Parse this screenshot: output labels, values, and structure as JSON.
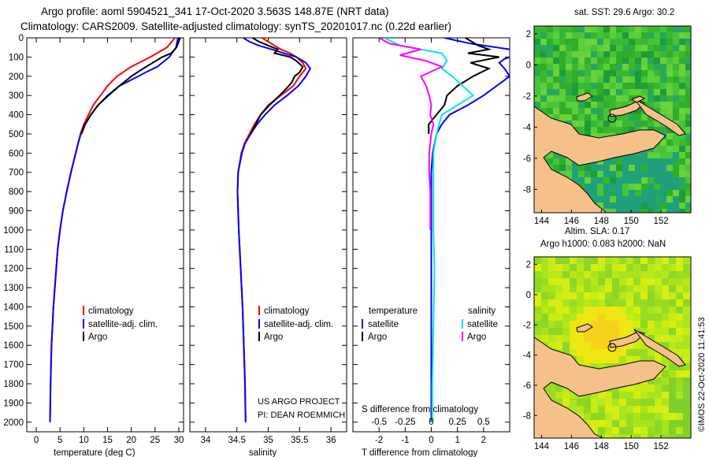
{
  "title": {
    "line1": "Argo profile: aoml 5904521_341 17-Oct-2020 3.563S 148.87E (NRT data)",
    "line2": "Climatology: CARS2009. Satellite-adjusted climatology: synTS_20201017.nc (0.22d earlier)"
  },
  "depth_ticks": [
    "0",
    "100",
    "200",
    "300",
    "400",
    "500",
    "600",
    "700",
    "800",
    "900",
    "1000",
    "1100",
    "1200",
    "1300",
    "1400",
    "1500",
    "1600",
    "1700",
    "1800",
    "1900",
    "2000"
  ],
  "colors": {
    "climatology": "#ff0000",
    "satellite": "#0000ff",
    "argo": "#000000",
    "sal_satellite": "#00e5e5",
    "sal_argo": "#ff00ff",
    "land": "#f5c08a",
    "ocean_deep": "#0a4fd0"
  },
  "chart_data": [
    {
      "type": "line",
      "panel": "temperature",
      "xlabel": "temperature (deg C)",
      "ylabel": "depth",
      "xlim": [
        -2,
        31
      ],
      "ylim": [
        2050,
        0
      ],
      "xticks": [
        0,
        5,
        10,
        15,
        20,
        25,
        30
      ],
      "xtick_labels": [
        "0",
        "5",
        "10",
        "15",
        "20",
        "25",
        "30"
      ],
      "legend": [
        "climatology",
        "satellite-adj. clim.",
        "Argo"
      ],
      "series": [
        {
          "name": "climatology",
          "depth": [
            0,
            50,
            100,
            150,
            200,
            250,
            300,
            350,
            400,
            450,
            500,
            550,
            600,
            700,
            800,
            900,
            1000,
            1100,
            1200,
            1400,
            1600,
            1800,
            2000
          ],
          "values": [
            29.2,
            27.5,
            24,
            20,
            17,
            15,
            13.5,
            12,
            11,
            10,
            9.3,
            8.8,
            8.3,
            7.3,
            6.4,
            5.6,
            5.0,
            4.5,
            4.2,
            3.6,
            3.2,
            3.0,
            2.9
          ]
        },
        {
          "name": "satellite-adj. clim.",
          "depth": [
            0,
            50,
            100,
            150,
            180,
            200,
            250,
            300,
            350,
            400,
            450,
            500,
            550,
            600,
            700,
            800,
            900,
            1000,
            1100,
            1200,
            1400,
            1600,
            1800,
            2000
          ],
          "values": [
            29.8,
            29.4,
            28,
            25.5,
            23,
            21.5,
            17.5,
            15,
            13,
            11.5,
            10.2,
            9.4,
            8.8,
            8.3,
            7.3,
            6.4,
            5.6,
            5.0,
            4.5,
            4.2,
            3.6,
            3.2,
            3.0,
            2.9
          ]
        },
        {
          "name": "Argo",
          "depth": [
            0,
            50,
            80,
            100,
            130,
            160,
            200,
            250,
            300,
            350,
            400,
            450,
            500
          ],
          "values": [
            30.3,
            29.5,
            28.4,
            26.5,
            24.5,
            22.5,
            20,
            17.5,
            15.2,
            13,
            11.5,
            10.3,
            9.5
          ]
        }
      ]
    },
    {
      "type": "line",
      "panel": "salinity",
      "xlabel": "salinity",
      "xlim": [
        33.75,
        36.25
      ],
      "ylim": [
        2050,
        0
      ],
      "xticks": [
        34,
        34.5,
        35,
        35.5,
        36
      ],
      "xtick_labels": [
        "34",
        "34.5",
        "35",
        "35.5",
        "36"
      ],
      "legend": [
        "climatology",
        "satellite-adj. clim.",
        "Argo"
      ],
      "annotation": [
        "US ARGO PROJECT",
        "PI: DEAN ROEMMICH"
      ],
      "series": [
        {
          "name": "climatology",
          "depth": [
            0,
            20,
            40,
            60,
            80,
            100,
            130,
            160,
            200,
            250,
            300,
            350,
            400,
            450,
            500,
            550,
            600,
            700,
            800,
            900,
            1000,
            1200,
            1400,
            1600,
            1800,
            2000
          ],
          "values": [
            34.9,
            35.0,
            35.1,
            35.2,
            35.35,
            35.45,
            35.55,
            35.6,
            35.5,
            35.4,
            35.2,
            35.0,
            34.88,
            34.78,
            34.7,
            34.62,
            34.57,
            34.52,
            34.51,
            34.52,
            34.53,
            34.56,
            34.59,
            34.61,
            34.63,
            34.64
          ]
        },
        {
          "name": "satellite-adj. clim.",
          "depth": [
            0,
            20,
            40,
            60,
            80,
            100,
            130,
            160,
            200,
            250,
            300,
            350,
            400,
            450,
            500,
            550,
            600,
            700,
            800,
            900,
            1000,
            1200,
            1400,
            1600,
            1800,
            2000
          ],
          "values": [
            34.6,
            34.7,
            34.85,
            35.05,
            35.25,
            35.45,
            35.6,
            35.67,
            35.6,
            35.48,
            35.3,
            35.1,
            34.95,
            34.82,
            34.72,
            34.63,
            34.58,
            34.52,
            34.51,
            34.52,
            34.53,
            34.56,
            34.59,
            34.61,
            34.63,
            34.64
          ]
        },
        {
          "name": "Argo",
          "depth": [
            0,
            20,
            40,
            60,
            80,
            100,
            120,
            150,
            180,
            200,
            230,
            260,
            300,
            350,
            400,
            450,
            500
          ],
          "values": [
            34.75,
            34.85,
            35.0,
            35.15,
            35.1,
            35.35,
            35.45,
            35.55,
            35.5,
            35.42,
            35.38,
            35.3,
            35.18,
            35.02,
            34.88,
            34.8,
            34.72
          ]
        }
      ]
    },
    {
      "type": "line",
      "panel": "difference",
      "xlabel": "T difference from climatology",
      "xlabel2": "S difference from climatology",
      "xlim": [
        -3,
        3
      ],
      "ylim": [
        2050,
        0
      ],
      "xticks": [
        -2,
        -1,
        0,
        1,
        2
      ],
      "xtick_labels": [
        "-2",
        "-1",
        "0",
        "1",
        "2"
      ],
      "sticks": [
        -0.5,
        -0.25,
        0,
        0.25,
        0.5
      ],
      "stick_labels": [
        "-0.5",
        "-0.25",
        "0",
        "0.25",
        "0.5"
      ],
      "legend_temperature_title": "temperature",
      "legend_salinity_title": "salinity",
      "legend_temperature": [
        "satellite",
        "Argo"
      ],
      "legend_salinity": [
        "satellite",
        "Argo"
      ],
      "series": [
        {
          "name": "T satellite",
          "depth": [
            0,
            30,
            60,
            90,
            110,
            130,
            160,
            200,
            250,
            300,
            350,
            400,
            450,
            500,
            600,
            700,
            800,
            1000,
            1200,
            1500,
            2000
          ],
          "values": [
            0.5,
            1.5,
            3,
            3.2,
            2.8,
            2.6,
            2.8,
            3.0,
            2.5,
            2.0,
            1.4,
            0.7,
            0.4,
            0.2,
            0.05,
            0,
            0,
            0,
            0,
            0,
            0
          ]
        },
        {
          "name": "T Argo",
          "depth": [
            0,
            40,
            60,
            80,
            100,
            130,
            160,
            200,
            250,
            300,
            350,
            400,
            450,
            500
          ],
          "values": [
            1.3,
            1.8,
            2.2,
            1.4,
            2.6,
            1.5,
            2.2,
            1.6,
            1.0,
            0.6,
            0.5,
            0.2,
            -0.1,
            -0.1
          ]
        },
        {
          "name": "S satellite",
          "depth": [
            0,
            40,
            80,
            120,
            160,
            200,
            250,
            300,
            400,
            500,
            600,
            800,
            1000,
            1200,
            1500,
            1800,
            2000
          ],
          "values": [
            -0.45,
            -0.3,
            0.1,
            0.15,
            0.1,
            0.2,
            0.3,
            0.4,
            0.1,
            0.05,
            0.02,
            0.02,
            0.02,
            0.03,
            0.02,
            0.01,
            0.01
          ]
        },
        {
          "name": "S Argo",
          "depth": [
            0,
            30,
            60,
            90,
            120,
            150,
            200,
            250,
            300,
            350,
            400,
            450,
            500,
            600,
            700,
            800,
            1000
          ],
          "values": [
            -0.5,
            -0.4,
            -0.1,
            -0.3,
            -0.05,
            0.1,
            -0.1,
            -0.05,
            -0.02,
            0,
            -0.01,
            0.02,
            0,
            -0.02,
            -0.02,
            -0.01,
            -0.01
          ]
        }
      ]
    },
    {
      "type": "heatmap",
      "panel": "sst-map",
      "title": "sat. SST: 29.6 Argo: 30.2",
      "xlim": [
        143.5,
        154
      ],
      "ylim": [
        -9.5,
        2.5
      ],
      "xticks": [
        144,
        146,
        148,
        150,
        152
      ],
      "xtick_labels": [
        "144",
        "146",
        "148",
        "150",
        "152"
      ],
      "yticks": [
        2,
        0,
        -2,
        -4,
        -6,
        -8
      ],
      "ytick_labels": [
        "2",
        "0",
        "-2",
        "-4",
        "-6",
        "-8"
      ],
      "float_position": [
        148.87,
        -3.563
      ]
    },
    {
      "type": "heatmap",
      "panel": "sla-map",
      "title_line1": "Altim. SLA: 0.17",
      "title_line2": "Argo h1000: 0.083 h2000: NaN",
      "xlim": [
        143.5,
        154
      ],
      "ylim": [
        -9.5,
        2.5
      ],
      "xticks": [
        144,
        146,
        148,
        150,
        152
      ],
      "xtick_labels": [
        "144",
        "146",
        "148",
        "150",
        "152"
      ],
      "yticks": [
        2,
        0,
        -2,
        -4,
        -6,
        -8
      ],
      "ytick_labels": [
        "2",
        "0",
        "-2",
        "-4",
        "-6",
        "-8"
      ],
      "float_position": [
        148.87,
        -3.563
      ]
    }
  ],
  "credit": "©IMOS 22-Oct-2020 11:41:53"
}
